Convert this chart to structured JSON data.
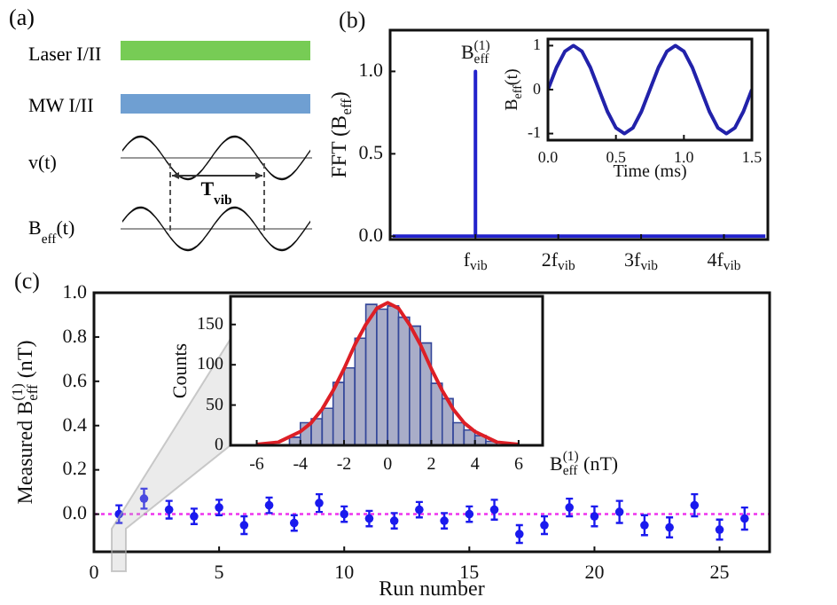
{
  "chart_data": [
    {
      "type": "other",
      "title": "(a)",
      "annotations": [
        "Laser I/II",
        "MW I/II",
        "v(t)",
        "B$_{eff}$(t)",
        "T$_{vib}$"
      ]
    },
    {
      "type": "line",
      "title": "(b)",
      "ylabel": "FFT (B$_{eff}$)",
      "x": [
        0,
        1,
        1,
        1,
        4.5
      ],
      "values": [
        0,
        0,
        1,
        0,
        0
      ],
      "color": "#2222cc",
      "xlim": [
        -0.03,
        4.53
      ],
      "xticks": [
        {
          "value": 1,
          "label": "f$_{vib}$"
        },
        {
          "value": 2,
          "label": "2f$_{vib}$"
        },
        {
          "value": 3,
          "label": "3f$_{vib}$"
        },
        {
          "value": 4,
          "label": "4f$_{vib}$"
        }
      ],
      "ylim": [
        -0.02,
        1.25
      ],
      "yticks": [
        {
          "value": 0,
          "label": "0.0"
        },
        {
          "value": 0.5,
          "label": "0.5"
        },
        {
          "value": 1,
          "label": "1.0"
        }
      ],
      "annotations": [
        {
          "text": "B$_{eff}$$^{(1)}$",
          "x": 1,
          "y": 1
        }
      ]
    },
    {
      "type": "line",
      "xlabel": "Time (ms)",
      "ylabel": "B$_{eff}$(t)",
      "x": [
        0,
        0.0625,
        0.125,
        0.1875,
        0.25,
        0.3125,
        0.375,
        0.4375,
        0.5,
        0.5625,
        0.625,
        0.6875,
        0.75,
        0.8125,
        0.875,
        0.9375,
        1,
        1.0625,
        1.125,
        1.1875,
        1.25,
        1.3125,
        1.375,
        1.4375,
        1.5
      ],
      "values": [
        0,
        0.5,
        0.87,
        1,
        0.87,
        0.5,
        0,
        -0.5,
        -0.87,
        -1,
        -0.87,
        -0.5,
        0,
        0.5,
        0.87,
        1,
        0.87,
        0.5,
        0,
        -0.5,
        -0.87,
        -1,
        -0.87,
        -0.5,
        0
      ],
      "color": "#2222aa",
      "xlim": [
        0,
        1.5
      ],
      "xticks": [
        {
          "value": 0,
          "label": "0.0"
        },
        {
          "value": 0.5,
          "label": "0.5"
        },
        {
          "value": 1,
          "label": "1.0"
        },
        {
          "value": 1.5,
          "label": "1.5"
        }
      ],
      "ylim": [
        -1.15,
        1.15
      ],
      "yticks": [
        -1,
        0,
        1
      ]
    },
    {
      "type": "scatter",
      "title": "(c)",
      "xlabel": "Run number",
      "ylabel": "Measured B$_{eff}$$^{(1)}$ (nT)",
      "x": [
        1,
        2,
        3,
        4,
        5,
        6,
        7,
        8,
        9,
        10,
        11,
        12,
        13,
        14,
        15,
        16,
        17,
        18,
        19,
        20,
        21,
        22,
        23,
        24,
        25,
        26
      ],
      "values": [
        0,
        0.07,
        0.02,
        -0.01,
        0.03,
        -0.05,
        0.04,
        -0.04,
        0.05,
        0,
        -0.02,
        -0.03,
        0.02,
        -0.03,
        0,
        0.02,
        -0.09,
        -0.05,
        0.03,
        -0.01,
        0.01,
        -0.05,
        -0.06,
        0.04,
        -0.07,
        -0.02
      ],
      "errors": [
        0.04,
        0.045,
        0.04,
        0.035,
        0.035,
        0.04,
        0.035,
        0.035,
        0.04,
        0.035,
        0.035,
        0.035,
        0.035,
        0.035,
        0.035,
        0.045,
        0.04,
        0.04,
        0.04,
        0.045,
        0.05,
        0.045,
        0.045,
        0.05,
        0.045,
        0.05
      ],
      "color": "#1a1aee",
      "marker": "circle",
      "xlim": [
        0,
        27
      ],
      "xticks": [
        0,
        5,
        10,
        15,
        20,
        25
      ],
      "ylim": [
        -0.17,
        1.0
      ],
      "yticks": [
        {
          "value": 0,
          "label": "0.0"
        },
        {
          "value": 0.2,
          "label": "0.2"
        },
        {
          "value": 0.4,
          "label": "0.4"
        },
        {
          "value": 0.6,
          "label": "0.6"
        },
        {
          "value": 0.8,
          "label": "0.8"
        },
        {
          "value": 1,
          "label": "1.0"
        }
      ],
      "ref_lines": [
        {
          "axis": "y",
          "value": 0,
          "color": "#ee33ee",
          "line_style": "dotted"
        }
      ]
    },
    {
      "type": "histogram",
      "xlabel": "B$_{eff}$$^{(1)}$ (nT)",
      "ylabel": "Counts",
      "bins": [
        -4.5,
        -4,
        -3.5,
        -3,
        -2.5,
        -2,
        -1.5,
        -1,
        -0.5,
        0,
        0.5,
        1,
        1.5,
        2,
        2.5,
        3,
        3.5,
        4,
        4.5,
        5
      ],
      "values": [
        10,
        28,
        33,
        46,
        78,
        96,
        133,
        175,
        169,
        173,
        159,
        148,
        127,
        77,
        58,
        28,
        19,
        12,
        5
      ],
      "color": "#a9adc8",
      "series": [
        {
          "type": "line",
          "x": [
            -6,
            -5,
            -4,
            -3.5,
            -3,
            -2.5,
            -2,
            -1.5,
            -1,
            -0.5,
            0,
            0.5,
            1,
            1.5,
            2,
            2.5,
            3,
            3.5,
            4,
            5,
            6
          ],
          "values": [
            1,
            4,
            17,
            28,
            45,
            68,
            95,
            125,
            150,
            170,
            177,
            170,
            150,
            125,
            95,
            68,
            45,
            28,
            17,
            4,
            1
          ],
          "color": "#dd1f26"
        }
      ],
      "xlim": [
        -7.2,
        7.1
      ],
      "xticks": [
        -6,
        -4,
        -2,
        0,
        2,
        4,
        6
      ],
      "ylim": [
        0,
        185
      ],
      "yticks": [
        0,
        50,
        100,
        150
      ]
    }
  ]
}
